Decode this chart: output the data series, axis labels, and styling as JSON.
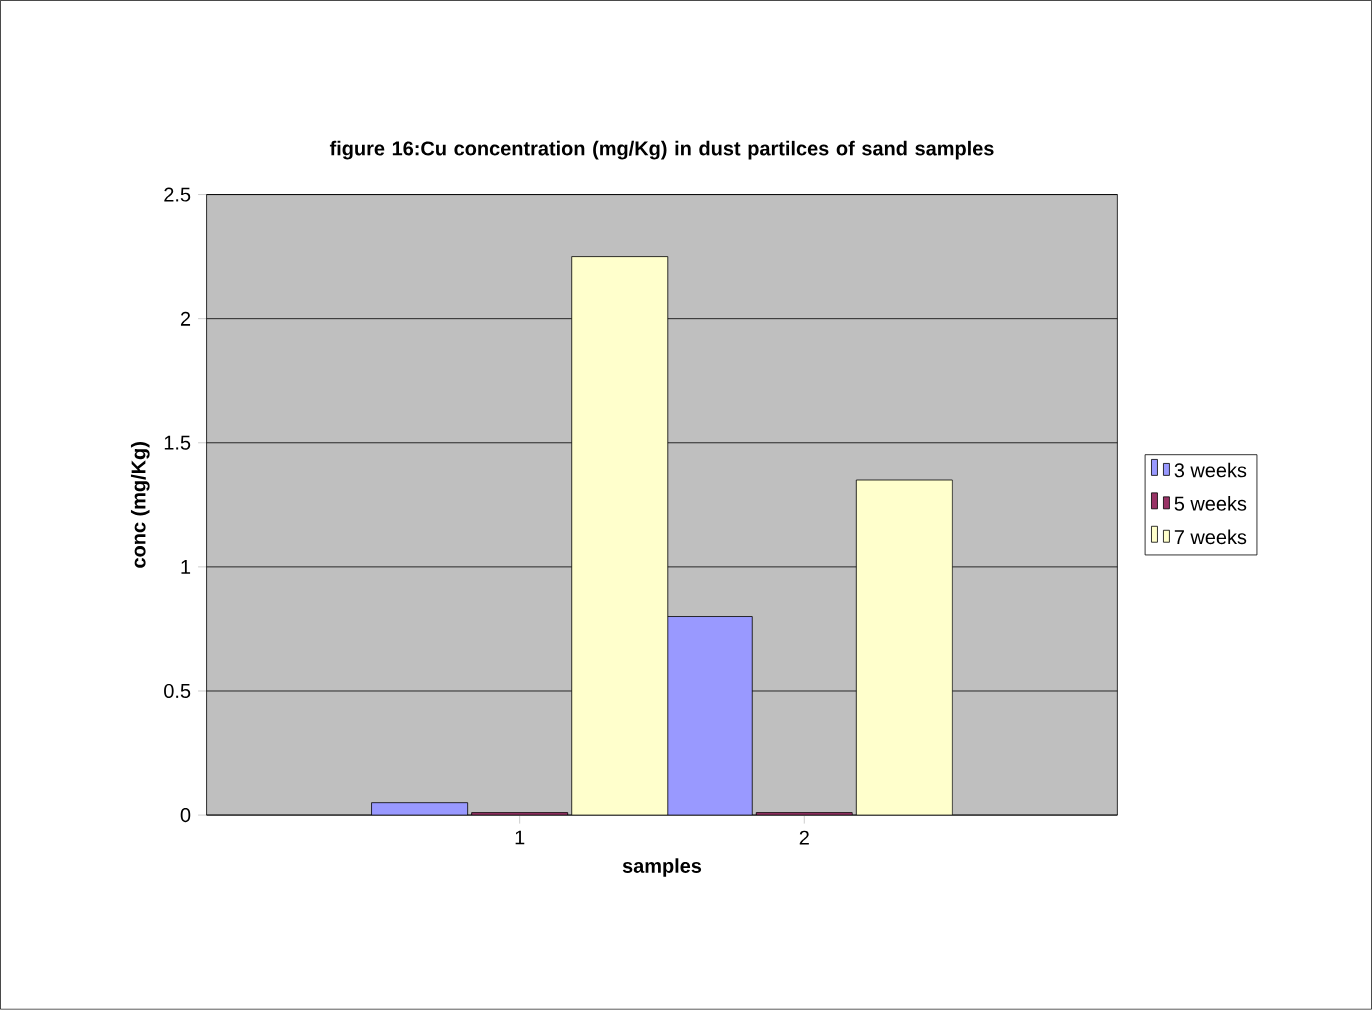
{
  "chart_data": {
    "type": "bar",
    "title": "figure 16:Cu concentration  (mg/Kg) in dust partilces of sand samples",
    "xlabel": "samples",
    "ylabel": "conc (mg/Kg)",
    "categories": [
      "1",
      "2"
    ],
    "series": [
      {
        "name": "3 weeks",
        "color": "#9999ff",
        "values": [
          0.05,
          0.8
        ]
      },
      {
        "name": "5 weeks",
        "color": "#993366",
        "values": [
          0.01,
          0.01
        ]
      },
      {
        "name": "7 weeks",
        "color": "#ffffcc",
        "values": [
          2.25,
          1.35
        ]
      }
    ],
    "ylim": [
      0,
      2.5
    ],
    "yticks": [
      0,
      0.5,
      1,
      1.5,
      2,
      2.5
    ],
    "grid": "y",
    "legend": "right"
  }
}
